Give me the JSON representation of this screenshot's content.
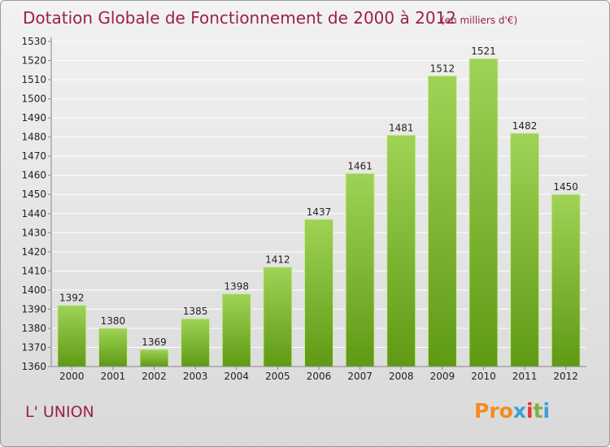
{
  "chart_data": {
    "type": "bar",
    "title": "Dotation Globale de Fonctionnement de 2000 à 2012",
    "unit": "(en milliers d'€)",
    "categories": [
      "2000",
      "2001",
      "2002",
      "2003",
      "2004",
      "2005",
      "2006",
      "2007",
      "2008",
      "2009",
      "2010",
      "2011",
      "2012"
    ],
    "values": [
      1392,
      1380,
      1369,
      1385,
      1398,
      1412,
      1437,
      1461,
      1481,
      1512,
      1521,
      1482,
      1450
    ],
    "ylim": [
      1360,
      1530
    ],
    "ytick_step": 10,
    "grid": true,
    "colors": {
      "bar_top": "#9fd356",
      "bar_bottom": "#5f9a14",
      "text": "#9b1f4f"
    }
  },
  "commune": "L' UNION",
  "logo": {
    "text": "Proxiti",
    "colors": [
      "#f28c1e",
      "#f28c1e",
      "#f28c1e",
      "#3aa0d8",
      "#e53935",
      "#7cb342",
      "#3aa0d8"
    ]
  }
}
